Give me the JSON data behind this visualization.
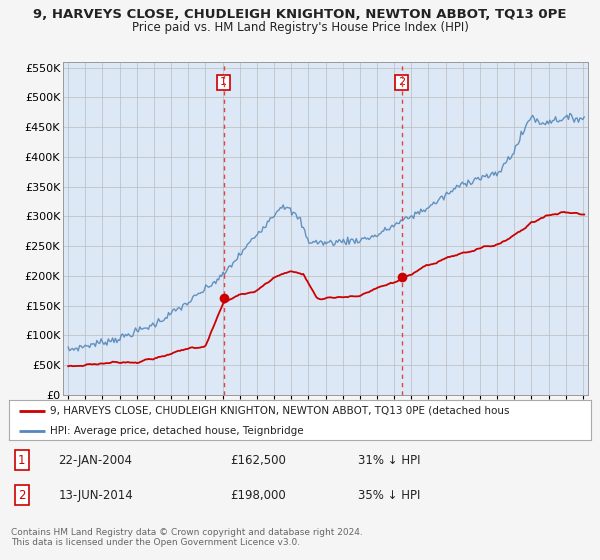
{
  "title": "9, HARVEYS CLOSE, CHUDLEIGH KNIGHTON, NEWTON ABBOT, TQ13 0PE",
  "subtitle": "Price paid vs. HM Land Registry's House Price Index (HPI)",
  "legend_red": "9, HARVEYS CLOSE, CHUDLEIGH KNIGHTON, NEWTON ABBOT, TQ13 0PE (detached hous",
  "legend_blue": "HPI: Average price, detached house, Teignbridge",
  "transaction1_date": "22-JAN-2004",
  "transaction1_price": "£162,500",
  "transaction1_hpi": "31% ↓ HPI",
  "transaction2_date": "13-JUN-2014",
  "transaction2_price": "£198,000",
  "transaction2_hpi": "35% ↓ HPI",
  "footer": "Contains HM Land Registry data © Crown copyright and database right 2024.\nThis data is licensed under the Open Government Licence v3.0.",
  "ylim": [
    0,
    560000
  ],
  "yticks": [
    0,
    50000,
    100000,
    150000,
    200000,
    250000,
    300000,
    350000,
    400000,
    450000,
    500000,
    550000
  ],
  "ytick_labels": [
    "£0",
    "£50K",
    "£100K",
    "£150K",
    "£200K",
    "£250K",
    "£300K",
    "£350K",
    "£400K",
    "£450K",
    "£500K",
    "£550K"
  ],
  "bg_color": "#f5f5f5",
  "plot_bg_color": "#dce8f5",
  "grid_color": "#bbbbbb",
  "red_color": "#cc0000",
  "blue_color": "#5588bb",
  "vline_color": "#dd4444",
  "transaction1_x": 2004.06,
  "transaction1_y": 162500,
  "transaction2_x": 2014.44,
  "transaction2_y": 198000,
  "xlim_left": 1994.7,
  "xlim_right": 2025.3
}
